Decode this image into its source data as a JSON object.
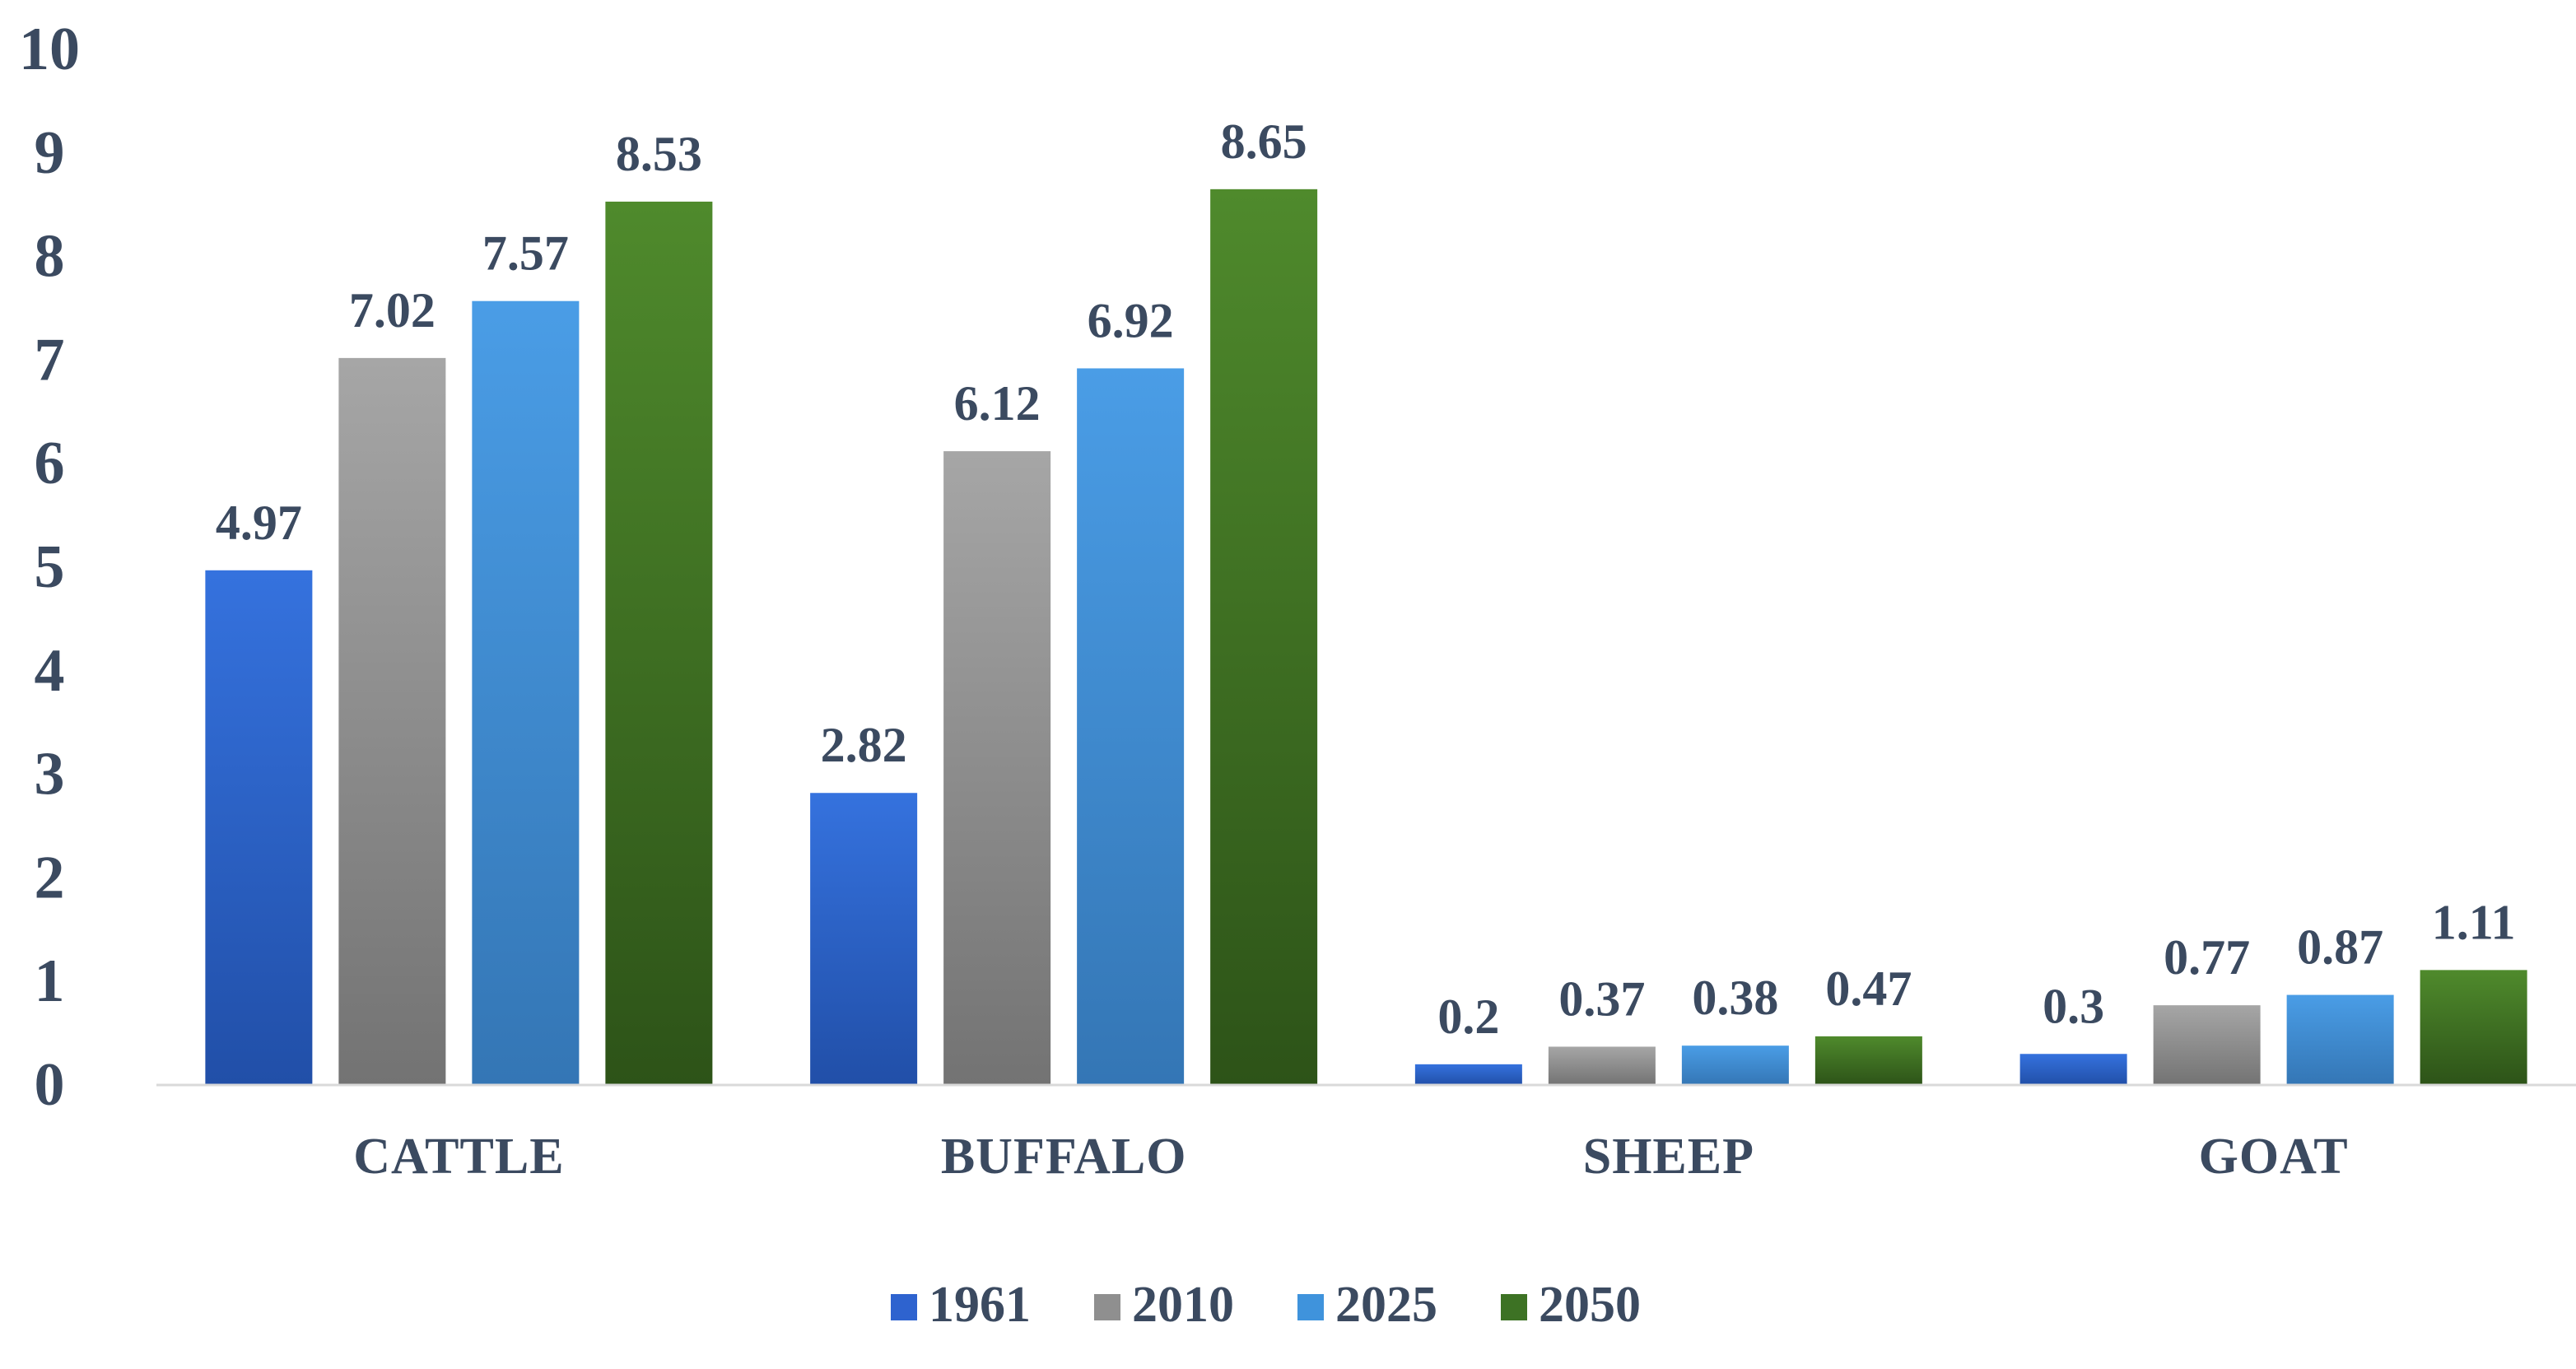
{
  "chart_data": {
    "type": "bar",
    "title": "",
    "xlabel": "",
    "ylabel": "",
    "ylim": [
      0,
      10
    ],
    "yticks": [
      "0",
      "1",
      "2",
      "3",
      "4",
      "5",
      "6",
      "7",
      "8",
      "9",
      "10"
    ],
    "categories": [
      "CATTLE",
      "BUFFALO",
      "SHEEP",
      "GOAT"
    ],
    "series": [
      {
        "name": "1961",
        "color": "#2e63cf",
        "values": [
          4.97,
          2.82,
          0.2,
          0.3
        ],
        "labels": [
          "4.97",
          "2.82",
          "0.2",
          "0.3"
        ]
      },
      {
        "name": "2010",
        "color": "#8f8f8f",
        "values": [
          7.02,
          6.12,
          0.37,
          0.77
        ],
        "labels": [
          "7.02",
          "6.12",
          "0.37",
          "0.77"
        ]
      },
      {
        "name": "2025",
        "color": "#3f93dc",
        "values": [
          7.57,
          6.92,
          0.38,
          0.87
        ],
        "labels": [
          "7.57",
          "6.92",
          "0.38",
          "0.87"
        ]
      },
      {
        "name": "2050",
        "color": "#3d7224",
        "values": [
          8.53,
          8.65,
          0.47,
          1.11
        ],
        "labels": [
          "8.53",
          "8.65",
          "0.47",
          "1.11"
        ]
      }
    ],
    "legend_position": "bottom",
    "grid": false
  }
}
